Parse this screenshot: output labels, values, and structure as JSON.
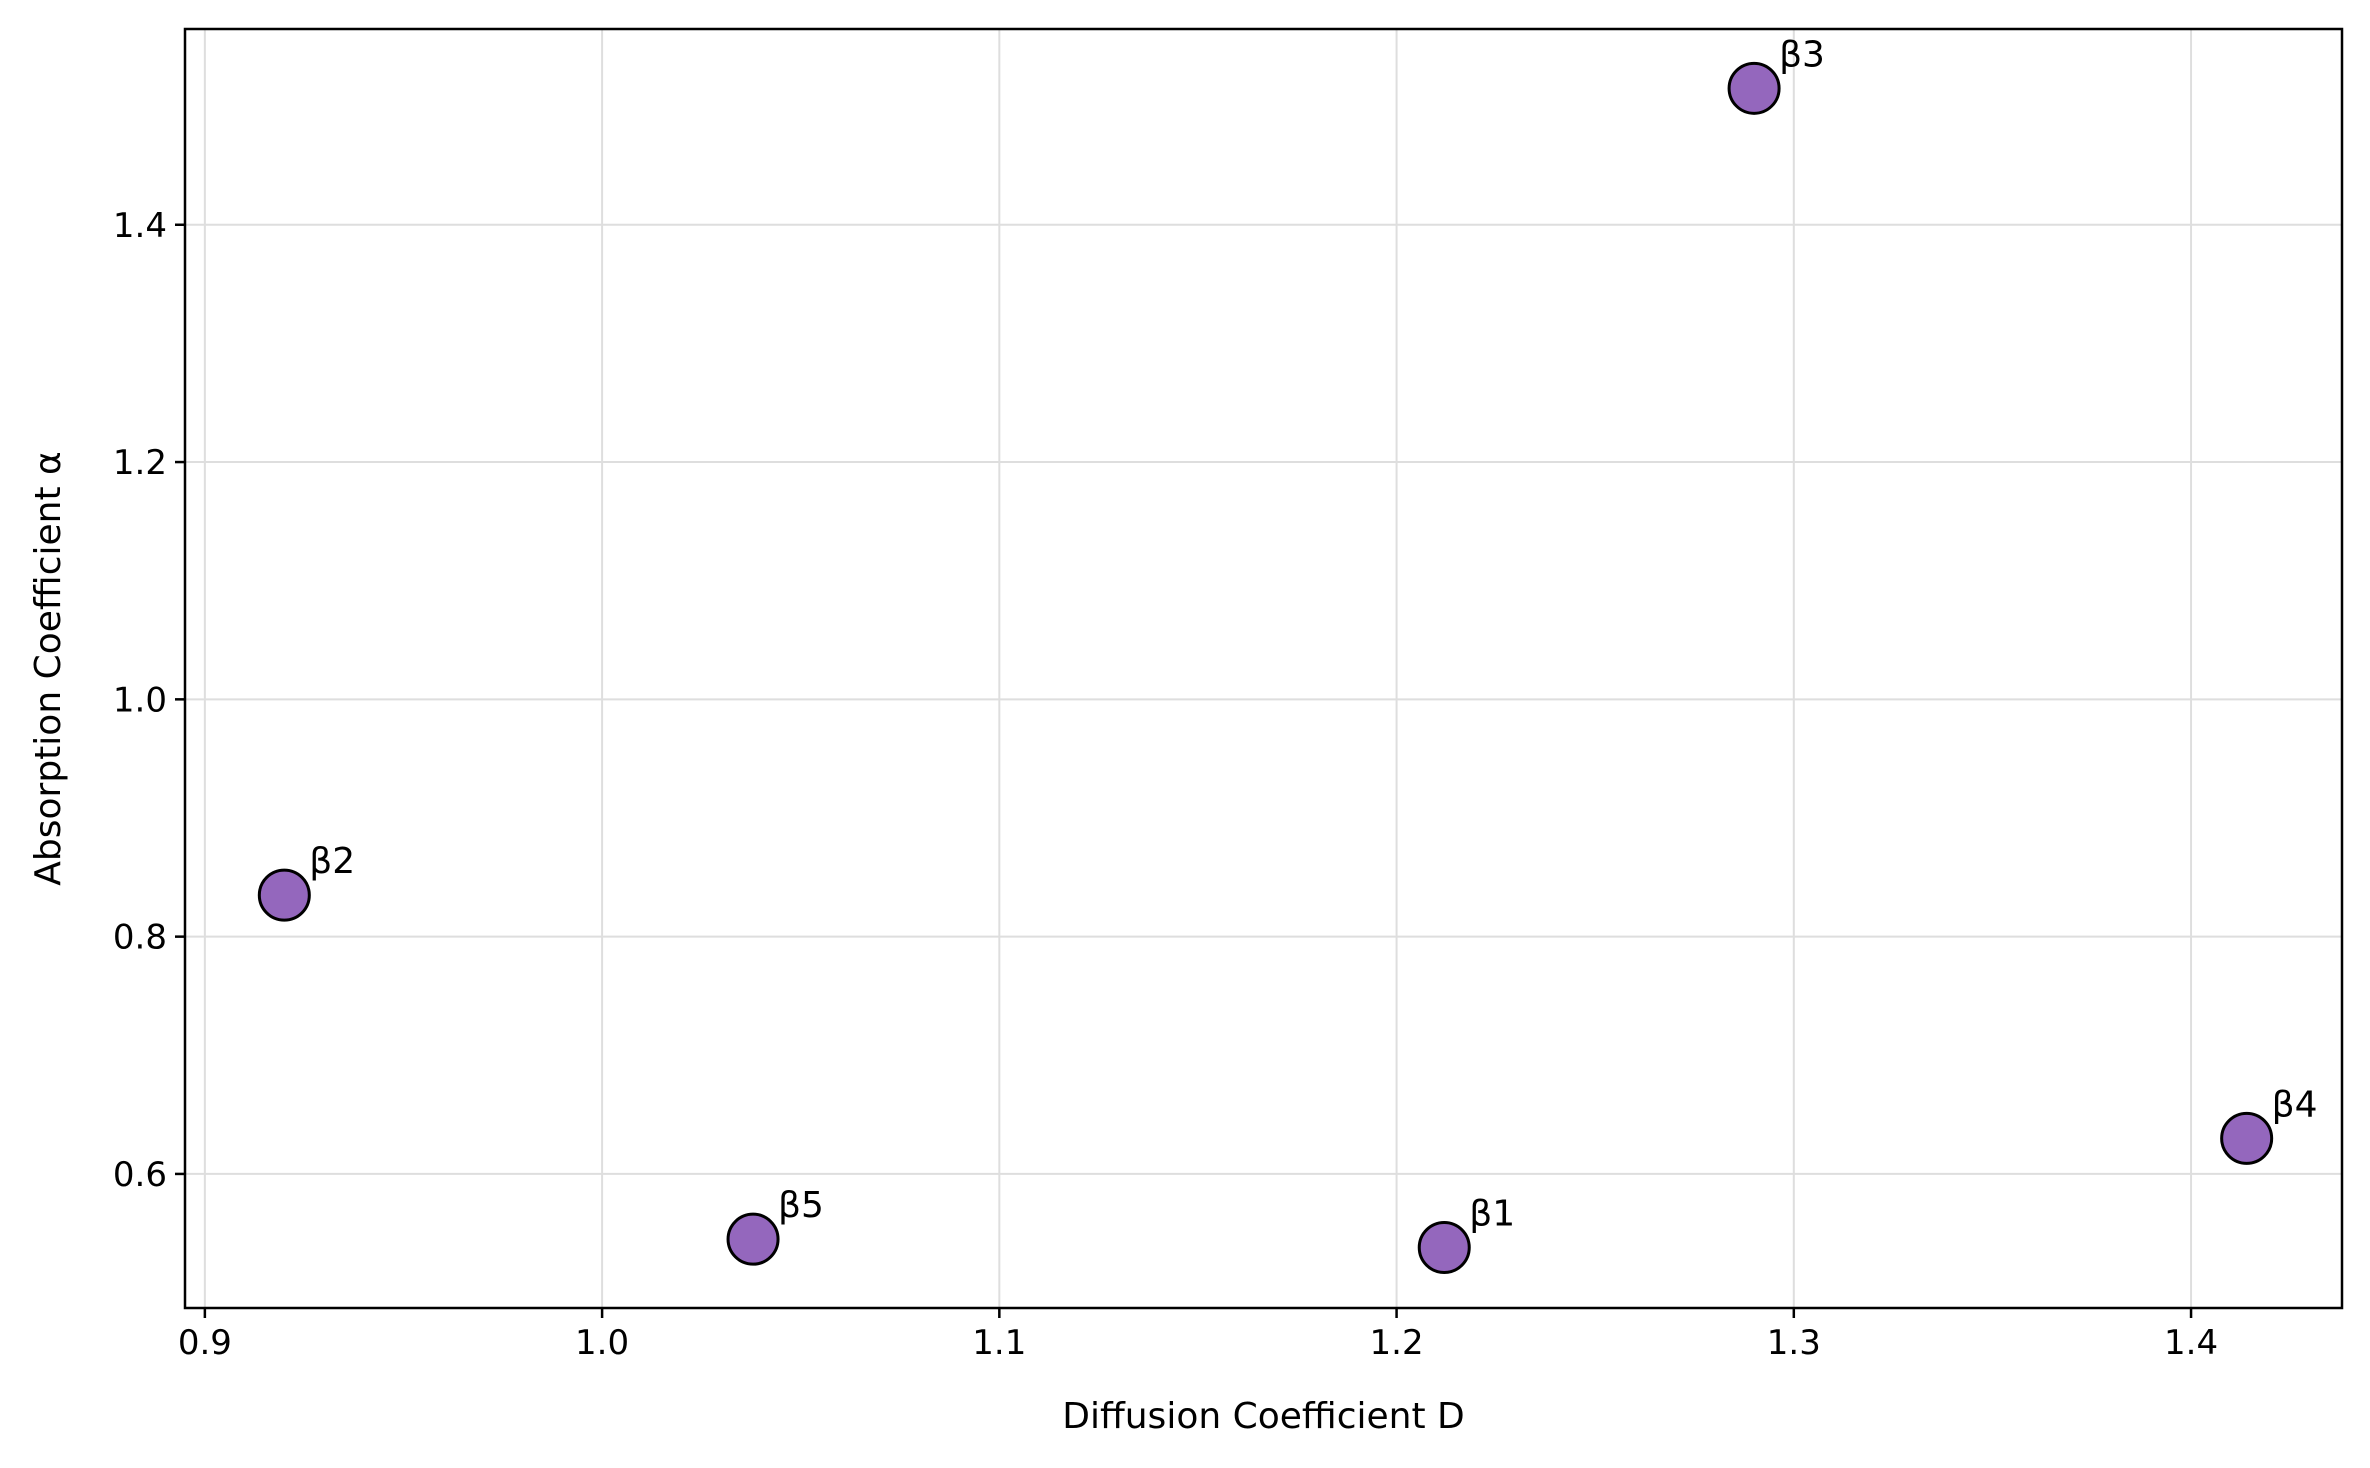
{
  "chart_data": {
    "type": "scatter",
    "title": "",
    "xlabel": "Diffusion Coefficient D",
    "ylabel": "Absorption Coefficient α",
    "xlim": [
      0.895,
      1.438
    ],
    "ylim": [
      0.487,
      1.565
    ],
    "xticks": [
      0.9,
      1.0,
      1.1,
      1.2,
      1.3,
      1.4
    ],
    "yticks": [
      0.6,
      0.8,
      1.0,
      1.2,
      1.4
    ],
    "xtick_labels": [
      "0.9",
      "1.0",
      "1.1",
      "1.2",
      "1.3",
      "1.4"
    ],
    "ytick_labels": [
      "0.6",
      "0.8",
      "1.0",
      "1.2",
      "1.4"
    ],
    "grid": true,
    "marker_color": "#9467bd",
    "marker_edge_color": "#000000",
    "points": [
      {
        "label": "β1",
        "x": 1.212,
        "y": 0.538
      },
      {
        "label": "β2",
        "x": 0.92,
        "y": 0.835
      },
      {
        "label": "β3",
        "x": 1.29,
        "y": 1.515
      },
      {
        "label": "β4",
        "x": 1.414,
        "y": 0.63
      },
      {
        "label": "β5",
        "x": 1.038,
        "y": 0.545
      }
    ]
  }
}
